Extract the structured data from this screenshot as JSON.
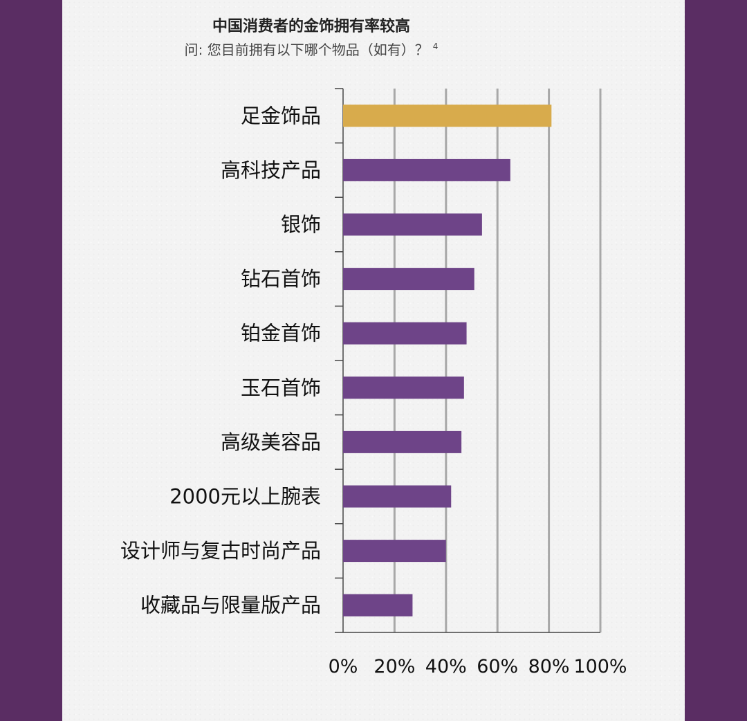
{
  "title": "中国消费者的金饰拥有率较高",
  "subtitle": "问: 您目前拥有以下哪个物品（如有）？",
  "subtitle_ref": "4",
  "colors": {
    "background": "#5a2d63",
    "panel": "#f3f3f3",
    "highlight_bar": "#d8ab4c",
    "bar": "#6e4488",
    "grid": "#a8a8a8",
    "axis": "#444444"
  },
  "chart_data": {
    "type": "bar",
    "orientation": "horizontal",
    "categories": [
      "足金饰品",
      "高科技产品",
      "银饰",
      "钻石首饰",
      "铂金首饰",
      "玉石首饰",
      "高级美容品",
      "2000元以上腕表",
      "设计师与复古时尚产品",
      "收藏品与限量版产品"
    ],
    "values": [
      81,
      65,
      54,
      51,
      48,
      47,
      46,
      42,
      40,
      27
    ],
    "highlight_index": 0,
    "xlim": [
      0,
      100
    ],
    "xticks": [
      0,
      20,
      40,
      60,
      80,
      100
    ],
    "xtick_labels": [
      "0%",
      "20%",
      "40%",
      "60%",
      "80%",
      "100%"
    ],
    "grid": "vertical",
    "xlabel": "",
    "ylabel": ""
  }
}
